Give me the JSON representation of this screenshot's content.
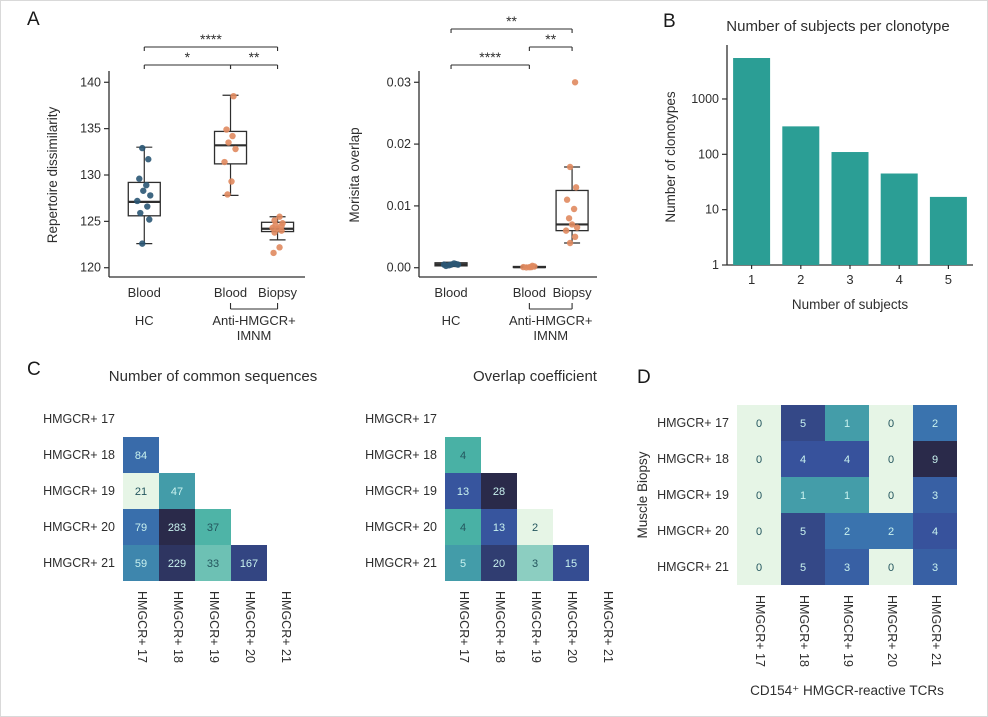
{
  "figure": {
    "panels": {
      "a": "A",
      "b": "B",
      "c": "C",
      "d": "D"
    }
  },
  "colors": {
    "axis": "#2e2e2e",
    "teal_bar": "#2b9e95",
    "hc_point": "#2a5674",
    "imnm_point": "#e0895f",
    "heat_text_light": "#c9f2ef",
    "heat_text_dark": "#24565e",
    "heat_stops": [
      [
        0,
        "#e6f5e6"
      ],
      [
        0.22,
        "#49b2a5"
      ],
      [
        0.45,
        "#3a77b0"
      ],
      [
        0.7,
        "#37529c"
      ],
      [
        1,
        "#2a2a4a"
      ]
    ]
  },
  "chart_data": [
    {
      "id": "repertoire_dissimilarity_boxplot",
      "type": "boxplot",
      "ylabel": "Repertoire dissimilarity",
      "ylim": [
        119,
        141
      ],
      "yticks": [
        120,
        125,
        130,
        135,
        140
      ],
      "ytick_labels": [
        "120",
        "125",
        "130",
        "135",
        "140"
      ],
      "x_positions": [
        0.18,
        0.62,
        0.86
      ],
      "groups": [
        {
          "label": "Blood",
          "color_key": "hc_point",
          "box": {
            "lo": 122.6,
            "q1": 125.6,
            "median": 127.1,
            "q3": 129.2,
            "hi": 133.0
          },
          "points": [
            [
              -2,
              132.9
            ],
            [
              4,
              131.7
            ],
            [
              -5,
              129.6
            ],
            [
              2,
              128.9
            ],
            [
              -1,
              128.3
            ],
            [
              6,
              127.8
            ],
            [
              -7,
              127.2
            ],
            [
              3,
              126.6
            ],
            [
              -4,
              125.9
            ],
            [
              5,
              125.2
            ],
            [
              -2,
              122.6
            ]
          ]
        },
        {
          "label": "Blood",
          "color_key": "imnm_point",
          "box": {
            "lo": 127.8,
            "q1": 131.2,
            "median": 133.2,
            "q3": 134.7,
            "hi": 138.6
          },
          "points": [
            [
              3,
              138.5
            ],
            [
              -4,
              134.9
            ],
            [
              2,
              134.2
            ],
            [
              -2,
              133.5
            ],
            [
              5,
              132.8
            ],
            [
              -6,
              131.4
            ],
            [
              1,
              129.3
            ],
            [
              -3,
              127.9
            ]
          ]
        },
        {
          "label": "Biopsy",
          "color_key": "imnm_point",
          "box": {
            "lo": 123.0,
            "q1": 123.9,
            "median": 124.2,
            "q3": 124.9,
            "hi": 125.5
          },
          "points": [
            [
              2,
              125.5
            ],
            [
              -3,
              125.1
            ],
            [
              5,
              124.8
            ],
            [
              -2,
              124.6
            ],
            [
              4,
              124.5
            ],
            [
              -5,
              124.3
            ],
            [
              0,
              124.2
            ],
            [
              4,
              124.0
            ],
            [
              -3,
              123.8
            ],
            [
              2,
              122.2
            ],
            [
              -4,
              121.6
            ]
          ]
        }
      ],
      "significance": [
        {
          "from": 0,
          "to": 1,
          "label": "*",
          "level": 1
        },
        {
          "from": 1,
          "to": 2,
          "label": "**",
          "level": 1
        },
        {
          "from": 0,
          "to": 2,
          "label": "****",
          "level": 2
        }
      ],
      "xaxis": {
        "group_labels": [
          "Blood",
          "Blood",
          "Biopsy"
        ],
        "annotations": [
          {
            "span": [
              0,
              0
            ],
            "lines": [
              "HC"
            ]
          },
          {
            "span": [
              1,
              2
            ],
            "lines": [
              "Anti-HMGCR+",
              "IMNM"
            ]
          }
        ]
      }
    },
    {
      "id": "morisita_overlap_boxplot",
      "type": "boxplot",
      "ylabel": "Morisita overlap",
      "ylim": [
        -0.0015,
        0.0315
      ],
      "yticks": [
        0,
        0.01,
        0.02,
        0.03
      ],
      "ytick_labels": [
        "0.00",
        "0.01",
        "0.02",
        "0.03"
      ],
      "x_positions": [
        0.18,
        0.62,
        0.86
      ],
      "groups": [
        {
          "label": "Blood",
          "color_key": "hc_point",
          "box": {
            "lo": 0.0002,
            "q1": 0.0003,
            "median": 0.0005,
            "q3": 0.0008,
            "hi": 0.0009
          },
          "points": [
            [
              -5,
              0.0003
            ],
            [
              0,
              0.0005
            ],
            [
              5,
              0.0006
            ],
            [
              -2,
              0.0004
            ],
            [
              3,
              0.0007
            ],
            [
              7,
              0.0005
            ],
            [
              -7,
              0.0005
            ]
          ]
        },
        {
          "label": "Blood",
          "color_key": "imnm_point",
          "box": {
            "lo": 2e-05,
            "q1": 6e-05,
            "median": 0.0001,
            "q3": 0.0002,
            "hi": 0.0003
          },
          "points": [
            [
              -3,
              5e-05
            ],
            [
              2,
              0.0001
            ],
            [
              5,
              0.0002
            ],
            [
              -6,
              0.0001
            ],
            [
              3,
              0.0003
            ],
            [
              0,
              8e-05
            ]
          ]
        },
        {
          "label": "Biopsy",
          "color_key": "imnm_point",
          "box": {
            "lo": 0.004,
            "q1": 0.006,
            "median": 0.007,
            "q3": 0.0125,
            "hi": 0.0163
          },
          "points": [
            [
              3,
              0.03
            ],
            [
              -2,
              0.0163
            ],
            [
              4,
              0.013
            ],
            [
              -5,
              0.011
            ],
            [
              2,
              0.0095
            ],
            [
              -3,
              0.008
            ],
            [
              0,
              0.007
            ],
            [
              5,
              0.0065
            ],
            [
              -6,
              0.006
            ],
            [
              3,
              0.005
            ],
            [
              -2,
              0.004
            ]
          ]
        }
      ],
      "significance": [
        {
          "from": 0,
          "to": 1,
          "label": "****",
          "level": 1
        },
        {
          "from": 1,
          "to": 2,
          "label": "**",
          "level": 2
        },
        {
          "from": 0,
          "to": 2,
          "label": "**",
          "level": 3
        }
      ],
      "xaxis": {
        "group_labels": [
          "Blood",
          "Blood",
          "Biopsy"
        ],
        "annotations": [
          {
            "span": [
              0,
              0
            ],
            "lines": [
              "HC"
            ]
          },
          {
            "span": [
              1,
              2
            ],
            "lines": [
              "Anti-HMGCR+",
              "IMNM"
            ]
          }
        ]
      }
    },
    {
      "id": "clonotype_bar",
      "type": "bar",
      "title": "Number of subjects per clonotype",
      "xlabel": "Number of subjects",
      "ylabel": "Number of clonotypes",
      "categories": [
        "1",
        "2",
        "3",
        "4",
        "5"
      ],
      "values": [
        5500,
        320,
        110,
        45,
        17
      ],
      "yscale": "log",
      "yticks": [
        1,
        10,
        100,
        1000
      ],
      "ytick_labels": [
        "1",
        "10",
        "100",
        "1000"
      ],
      "ylim": [
        1,
        8000
      ]
    },
    {
      "id": "common_sequences_heatmap",
      "type": "heatmap",
      "title": "Number of common sequences",
      "rows": [
        "HMGCR+ 17",
        "HMGCR+ 18",
        "HMGCR+ 19",
        "HMGCR+ 20",
        "HMGCR+ 21"
      ],
      "cols": [
        "HMGCR+ 17",
        "HMGCR+ 18",
        "HMGCR+ 19",
        "HMGCR+ 20",
        "HMGCR+ 21"
      ],
      "values": [
        [
          null,
          null,
          null,
          null,
          null
        ],
        [
          84,
          null,
          null,
          null,
          null
        ],
        [
          21,
          47,
          null,
          null,
          null
        ],
        [
          79,
          283,
          37,
          null,
          null
        ],
        [
          59,
          229,
          33,
          167,
          null
        ]
      ],
      "scale": "log"
    },
    {
      "id": "overlap_coefficient_heatmap",
      "type": "heatmap",
      "title": "Overlap coefficient",
      "rows": [
        "HMGCR+ 17",
        "HMGCR+ 18",
        "HMGCR+ 19",
        "HMGCR+ 20",
        "HMGCR+ 21"
      ],
      "cols": [
        "HMGCR+ 17",
        "HMGCR+ 18",
        "HMGCR+ 19",
        "HMGCR+ 20",
        "HMGCR+ 21"
      ],
      "values": [
        [
          null,
          null,
          null,
          null,
          null
        ],
        [
          4,
          null,
          null,
          null,
          null
        ],
        [
          13,
          28,
          null,
          null,
          null
        ],
        [
          4,
          13,
          2,
          null,
          null
        ],
        [
          5,
          20,
          3,
          15,
          null
        ]
      ],
      "scale": "log"
    },
    {
      "id": "biopsy_tcr_heatmap",
      "type": "heatmap",
      "title": "",
      "ylabel": "Muscle Biopsy",
      "xlabel": "CD154⁺ HMGCR-reactive TCRs",
      "rows": [
        "HMGCR+ 17",
        "HMGCR+ 18",
        "HMGCR+ 19",
        "HMGCR+ 20",
        "HMGCR+ 21"
      ],
      "cols": [
        "HMGCR+ 17",
        "HMGCR+ 18",
        "HMGCR+ 19",
        "HMGCR+ 20",
        "HMGCR+ 21"
      ],
      "values": [
        [
          0,
          5,
          1,
          0,
          2
        ],
        [
          0,
          4,
          4,
          0,
          9
        ],
        [
          0,
          1,
          1,
          0,
          3
        ],
        [
          0,
          5,
          2,
          2,
          4
        ],
        [
          0,
          5,
          3,
          0,
          3
        ]
      ],
      "scale": "log"
    }
  ]
}
